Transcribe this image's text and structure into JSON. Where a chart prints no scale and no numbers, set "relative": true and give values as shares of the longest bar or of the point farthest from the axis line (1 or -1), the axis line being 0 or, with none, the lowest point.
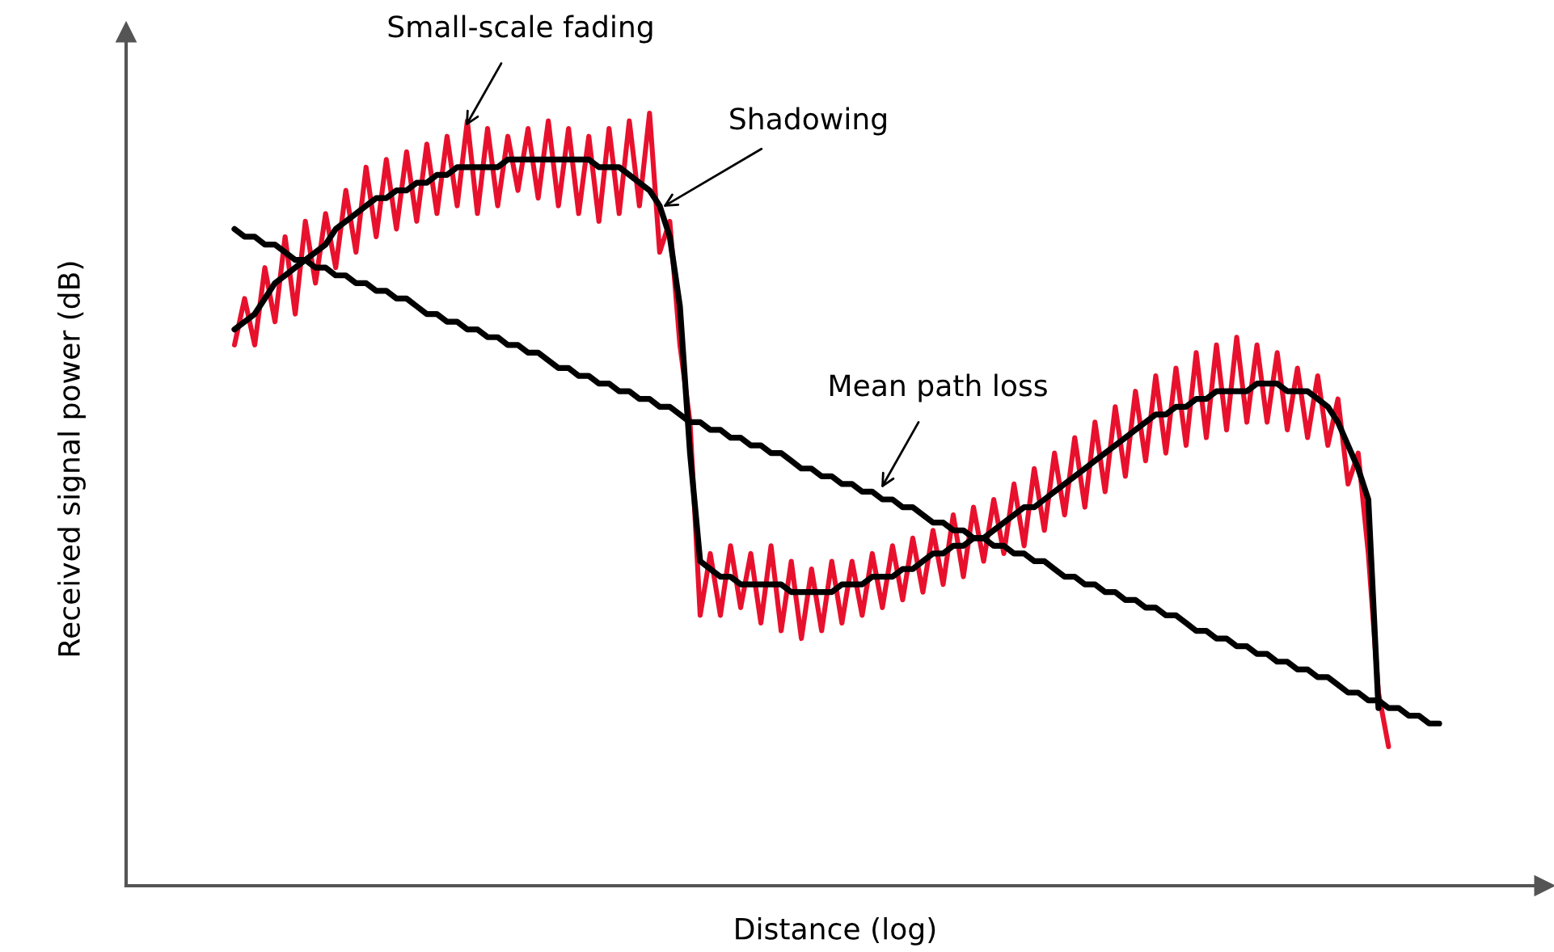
{
  "chart_data": {
    "type": "line",
    "relative": true,
    "xlabel": "Distance (log)",
    "ylabel": "Received signal power (dB)",
    "tick_labels": false,
    "grid": false,
    "legend": false,
    "marker": "none",
    "annotations": [
      "Small-scale fading",
      "Shadowing",
      "Mean path loss"
    ],
    "categories": [
      null,
      null,
      null,
      null,
      null,
      null,
      null,
      null,
      null,
      null,
      null,
      null,
      null,
      null,
      null,
      null,
      null,
      null,
      null,
      null,
      null,
      null,
      null,
      null,
      null,
      null,
      null,
      null,
      null,
      null,
      null,
      null,
      null,
      null,
      null,
      null,
      null,
      null,
      null,
      null,
      null,
      null,
      null,
      null,
      null,
      null,
      null,
      null,
      null,
      null,
      null,
      null,
      null,
      null,
      null,
      null,
      null,
      null,
      null,
      null,
      null,
      null,
      null,
      null,
      null,
      null,
      null,
      null,
      null,
      null,
      null,
      null,
      null,
      null,
      null,
      null,
      null,
      null,
      null,
      null,
      null,
      null,
      null,
      null,
      null,
      null,
      null,
      null,
      null,
      null,
      null,
      null,
      null,
      null,
      null,
      null,
      null,
      null,
      null,
      null,
      null,
      null,
      null,
      null,
      null,
      null,
      null,
      null,
      null,
      null,
      null,
      null,
      null,
      null,
      null,
      null,
      null,
      null,
      null,
      null
    ],
    "series": [
      {
        "color": "#e8112d",
        "line_style": "solid",
        "values": [
          0.7,
          0.76,
          0.7,
          0.8,
          0.73,
          0.84,
          0.74,
          0.86,
          0.78,
          0.87,
          0.8,
          0.9,
          0.82,
          0.93,
          0.84,
          0.94,
          0.85,
          0.95,
          0.86,
          0.96,
          0.87,
          0.97,
          0.88,
          0.99,
          0.87,
          0.98,
          0.88,
          0.97,
          0.9,
          0.98,
          0.89,
          0.99,
          0.88,
          0.98,
          0.87,
          0.97,
          0.86,
          0.98,
          0.87,
          0.99,
          0.88,
          1.0,
          0.82,
          0.86,
          0.7,
          0.6,
          0.35,
          0.43,
          0.35,
          0.44,
          0.36,
          0.43,
          0.34,
          0.44,
          0.33,
          0.42,
          0.32,
          0.41,
          0.33,
          0.42,
          0.34,
          0.42,
          0.35,
          0.43,
          0.36,
          0.44,
          0.37,
          0.45,
          0.38,
          0.46,
          0.39,
          0.48,
          0.4,
          0.49,
          0.42,
          0.5,
          0.43,
          0.52,
          0.44,
          0.54,
          0.46,
          0.56,
          0.48,
          0.58,
          0.49,
          0.6,
          0.51,
          0.62,
          0.53,
          0.64,
          0.55,
          0.66,
          0.56,
          0.67,
          0.57,
          0.69,
          0.58,
          0.7,
          0.59,
          0.71,
          0.6,
          0.7,
          0.6,
          0.69,
          0.59,
          0.67,
          0.58,
          0.66,
          0.57,
          0.63,
          0.52,
          0.56,
          0.43,
          0.25,
          0.18,
          null,
          null,
          null,
          null,
          null
        ]
      },
      {
        "color": "#000000",
        "line_style": "solid",
        "values": [
          0.72,
          0.73,
          0.74,
          0.76,
          0.78,
          0.79,
          0.8,
          0.81,
          0.82,
          0.83,
          0.85,
          0.86,
          0.87,
          0.88,
          0.89,
          0.89,
          0.9,
          0.9,
          0.91,
          0.91,
          0.92,
          0.92,
          0.93,
          0.93,
          0.93,
          0.93,
          0.93,
          0.94,
          0.94,
          0.94,
          0.94,
          0.94,
          0.94,
          0.94,
          0.94,
          0.94,
          0.93,
          0.93,
          0.93,
          0.92,
          0.91,
          0.9,
          0.88,
          0.84,
          0.75,
          0.56,
          0.42,
          0.41,
          0.4,
          0.4,
          0.39,
          0.39,
          0.39,
          0.39,
          0.39,
          0.38,
          0.38,
          0.38,
          0.38,
          0.38,
          0.39,
          0.39,
          0.39,
          0.4,
          0.4,
          0.4,
          0.41,
          0.41,
          0.42,
          0.43,
          0.43,
          0.44,
          0.44,
          0.45,
          0.45,
          0.46,
          0.47,
          0.48,
          0.49,
          0.49,
          0.5,
          0.51,
          0.52,
          0.53,
          0.54,
          0.55,
          0.56,
          0.57,
          0.58,
          0.59,
          0.6,
          0.61,
          0.61,
          0.62,
          0.62,
          0.63,
          0.63,
          0.64,
          0.64,
          0.64,
          0.64,
          0.65,
          0.65,
          0.65,
          0.64,
          0.64,
          0.64,
          0.63,
          0.62,
          0.6,
          0.57,
          0.54,
          0.5,
          0.23,
          null,
          null,
          null,
          null,
          null,
          null
        ]
      },
      {
        "color": "#000000",
        "line_style": "solid",
        "values": [
          0.85,
          0.84,
          0.84,
          0.83,
          0.83,
          0.82,
          0.81,
          0.81,
          0.8,
          0.8,
          0.79,
          0.79,
          0.78,
          0.78,
          0.77,
          0.77,
          0.76,
          0.76,
          0.75,
          0.74,
          0.74,
          0.73,
          0.73,
          0.72,
          0.72,
          0.71,
          0.71,
          0.7,
          0.7,
          0.69,
          0.69,
          0.68,
          0.67,
          0.67,
          0.66,
          0.66,
          0.65,
          0.65,
          0.64,
          0.64,
          0.63,
          0.63,
          0.62,
          0.62,
          0.61,
          0.6,
          0.6,
          0.59,
          0.59,
          0.58,
          0.58,
          0.57,
          0.57,
          0.56,
          0.56,
          0.55,
          0.54,
          0.54,
          0.53,
          0.53,
          0.52,
          0.52,
          0.51,
          0.51,
          0.5,
          0.5,
          0.49,
          0.49,
          0.48,
          0.47,
          0.47,
          0.46,
          0.46,
          0.45,
          0.45,
          0.44,
          0.44,
          0.43,
          0.43,
          0.42,
          0.42,
          0.41,
          0.4,
          0.4,
          0.39,
          0.39,
          0.38,
          0.38,
          0.37,
          0.37,
          0.36,
          0.36,
          0.35,
          0.35,
          0.34,
          0.33,
          0.33,
          0.32,
          0.32,
          0.31,
          0.31,
          0.3,
          0.3,
          0.29,
          0.29,
          0.28,
          0.28,
          0.27,
          0.27,
          0.26,
          0.25,
          0.25,
          0.24,
          0.24,
          0.23,
          0.23,
          0.22,
          0.22,
          0.21,
          0.21
        ]
      }
    ]
  }
}
